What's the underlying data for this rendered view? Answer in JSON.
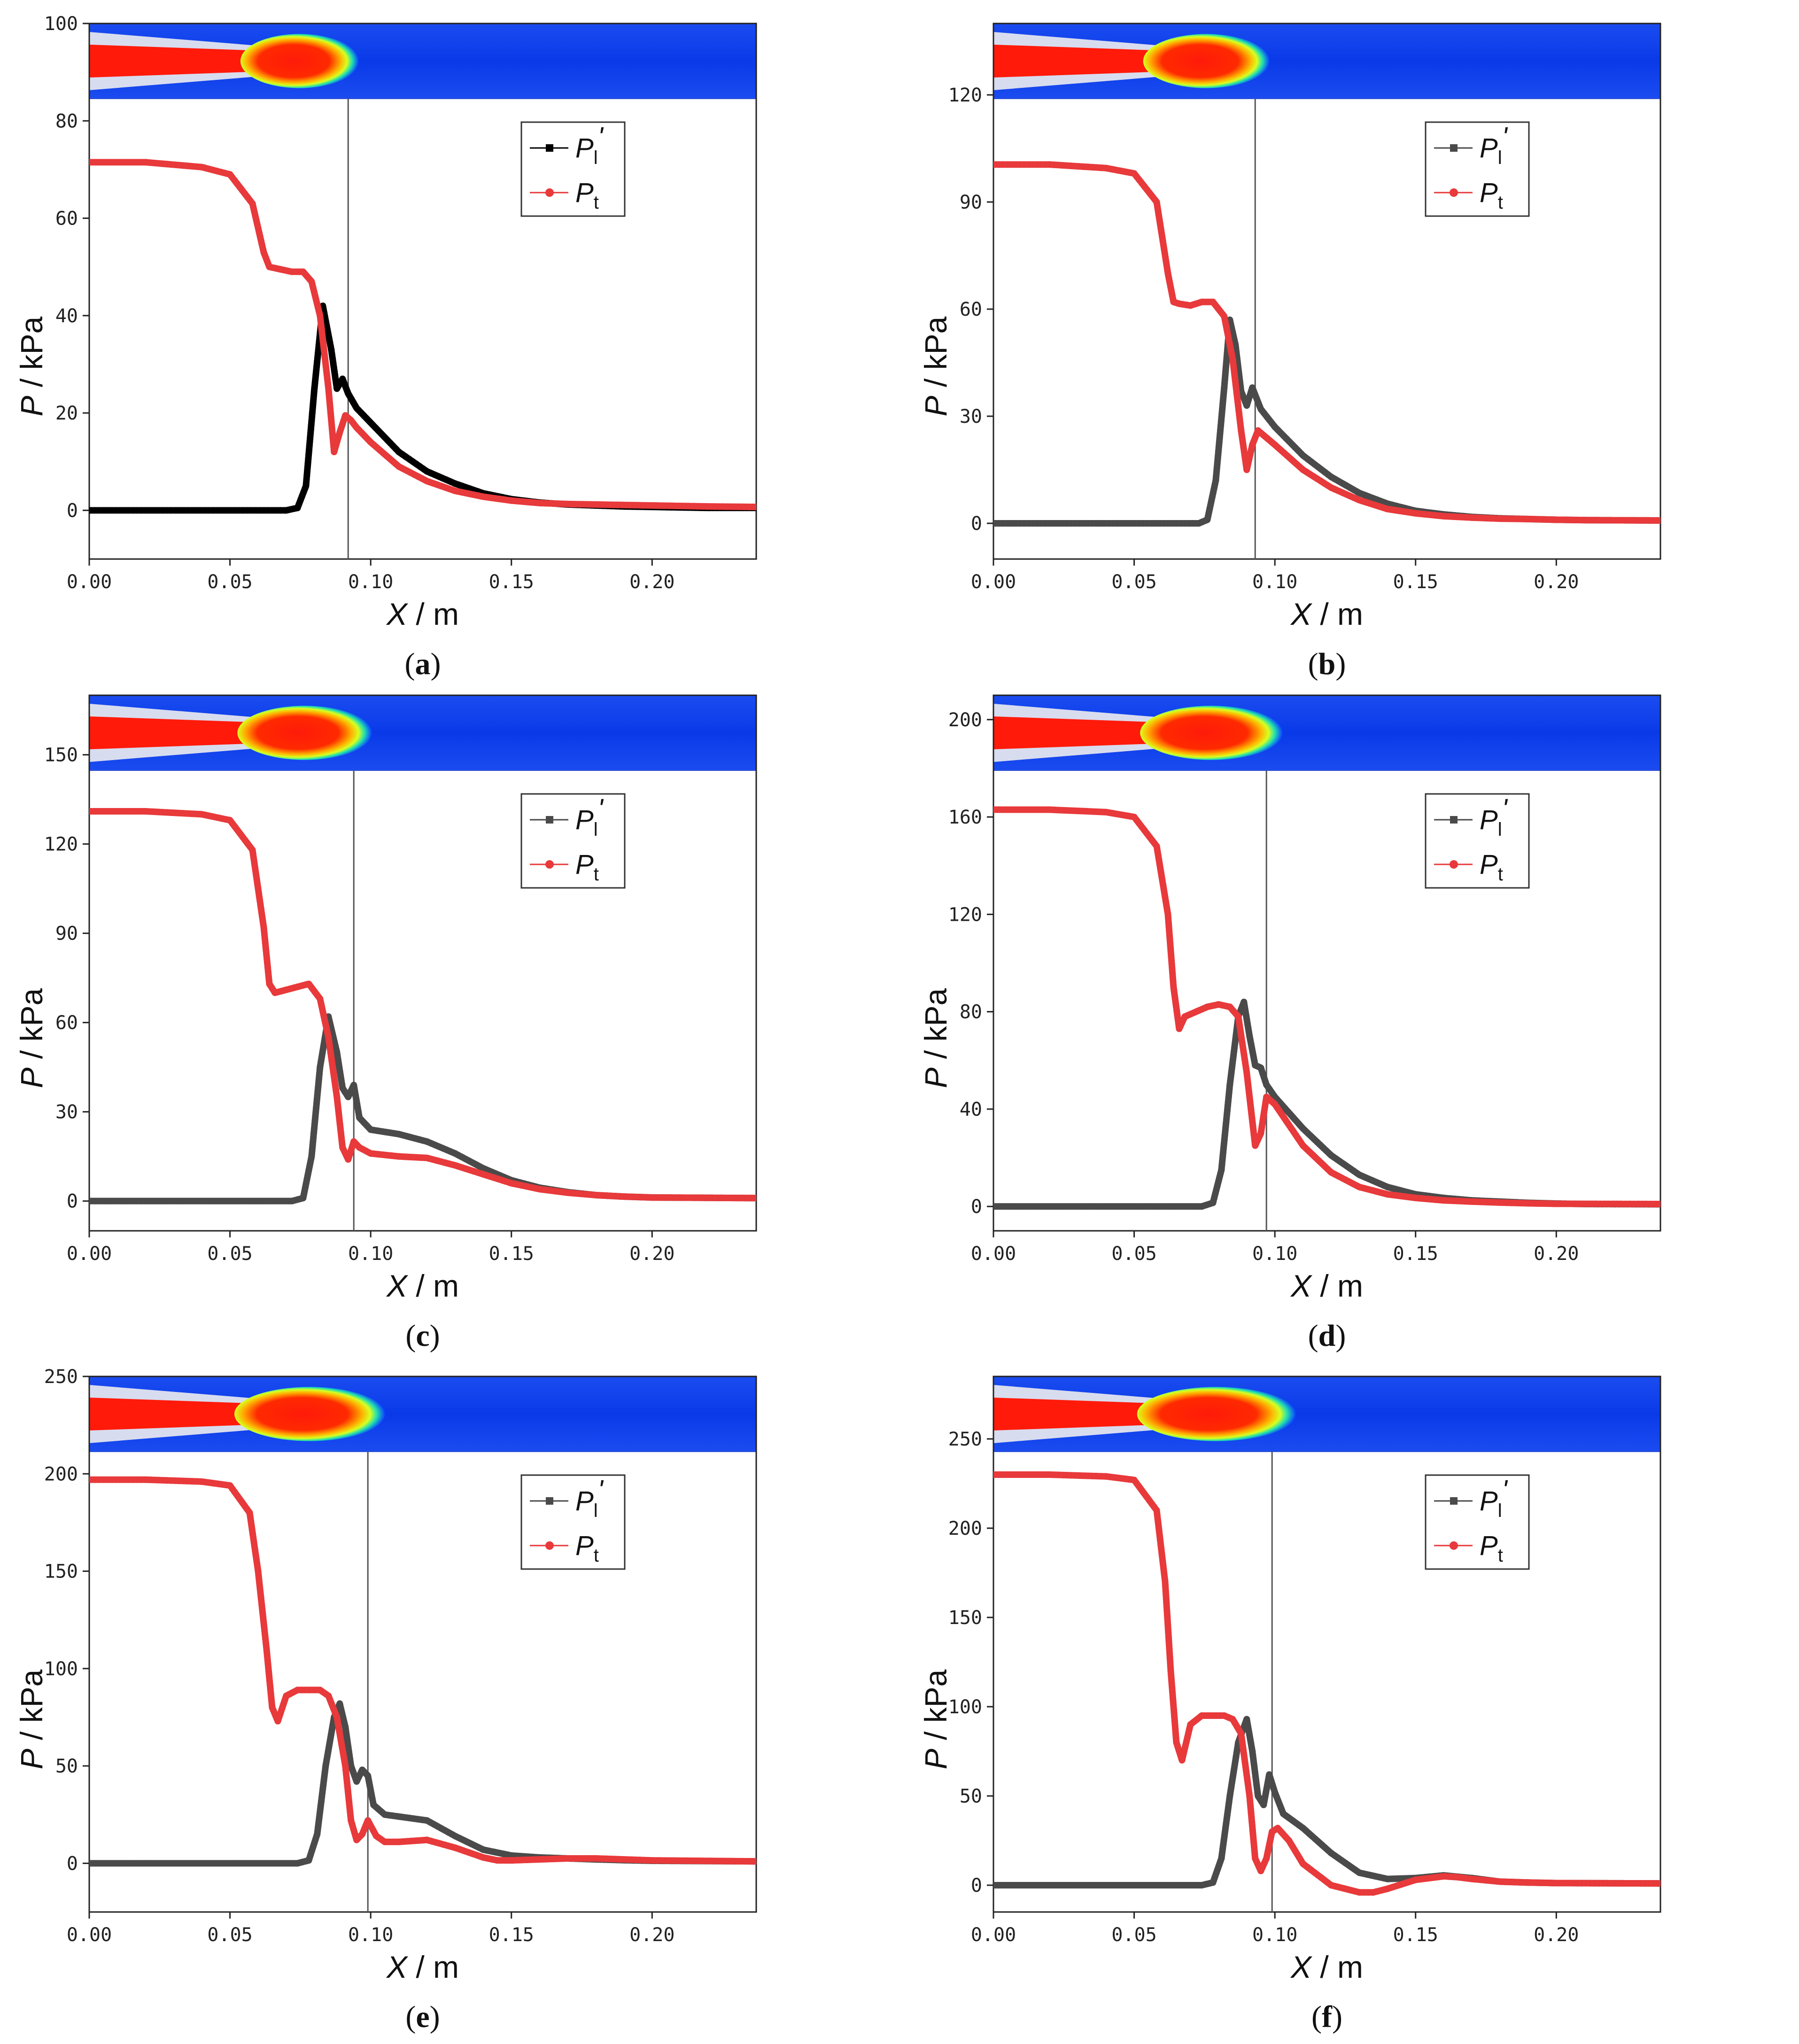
{
  "figure": {
    "xlabel_var": "X",
    "xlabel_unit": " / m",
    "ylabel_var": "P",
    "ylabel_unit": " / kPa",
    "legend": [
      {
        "sym": "P",
        "sub": "l",
        "prime": "'"
      },
      {
        "sym": "P",
        "sub": "t",
        "prime": ""
      }
    ],
    "colors": {
      "Pl": "#4a4a4a",
      "Pl_a": "#000000",
      "Pt": "#e8393b",
      "vline": "#555555"
    },
    "xticks": [
      0.0,
      0.05,
      0.1,
      0.15,
      0.2
    ],
    "xtick_labels": [
      "0.00",
      "0.05",
      "0.10",
      "0.15",
      "0.20"
    ]
  },
  "chart_data": [
    {
      "id": "a",
      "caption": "a",
      "type": "line",
      "xlim": [
        0,
        0.237
      ],
      "ylim": [
        -10,
        100
      ],
      "yticks": [
        0,
        20,
        40,
        60,
        80,
        100
      ],
      "vline_x": 0.092,
      "series": [
        {
          "name": "Pl'",
          "x": [
            0,
            0.07,
            0.074,
            0.077,
            0.08,
            0.083,
            0.086,
            0.088,
            0.09,
            0.092,
            0.095,
            0.1,
            0.11,
            0.12,
            0.13,
            0.14,
            0.15,
            0.16,
            0.17,
            0.18,
            0.19,
            0.2,
            0.21,
            0.22,
            0.237
          ],
          "y": [
            0,
            0,
            0.5,
            5,
            25,
            42,
            33,
            25,
            27,
            24,
            21,
            18,
            12,
            8,
            5.5,
            3.5,
            2.3,
            1.6,
            1.2,
            1.0,
            0.8,
            0.7,
            0.6,
            0.5,
            0.5
          ]
        },
        {
          "name": "Pt",
          "x": [
            0,
            0.02,
            0.04,
            0.05,
            0.058,
            0.062,
            0.064,
            0.068,
            0.072,
            0.076,
            0.079,
            0.082,
            0.085,
            0.087,
            0.089,
            0.091,
            0.093,
            0.095,
            0.1,
            0.11,
            0.12,
            0.13,
            0.14,
            0.15,
            0.16,
            0.17,
            0.18,
            0.19,
            0.2,
            0.21,
            0.22,
            0.237
          ],
          "y": [
            71.5,
            71.5,
            70.5,
            69,
            63,
            53,
            50,
            49.5,
            49,
            49,
            47,
            40,
            25,
            12,
            16,
            19.5,
            18.5,
            17,
            14,
            9,
            6,
            4,
            2.8,
            2,
            1.5,
            1.3,
            1.2,
            1.1,
            1,
            0.9,
            0.8,
            0.7
          ]
        }
      ]
    },
    {
      "id": "b",
      "caption": "b",
      "type": "line",
      "xlim": [
        0,
        0.237
      ],
      "ylim": [
        -10,
        140
      ],
      "yticks": [
        0,
        30,
        60,
        90,
        120
      ],
      "vline_x": 0.093,
      "series": [
        {
          "name": "Pl'",
          "x": [
            0,
            0.073,
            0.076,
            0.079,
            0.082,
            0.084,
            0.086,
            0.088,
            0.09,
            0.092,
            0.095,
            0.1,
            0.11,
            0.12,
            0.13,
            0.14,
            0.15,
            0.16,
            0.17,
            0.18,
            0.19,
            0.2,
            0.21,
            0.237
          ],
          "y": [
            0,
            0,
            1,
            12,
            38,
            57,
            50,
            37,
            33,
            38,
            32,
            27,
            19,
            13,
            8.5,
            5.5,
            3.5,
            2.5,
            1.8,
            1.4,
            1.2,
            1.0,
            0.9,
            0.8
          ]
        },
        {
          "name": "Pt",
          "x": [
            0,
            0.02,
            0.04,
            0.05,
            0.058,
            0.062,
            0.064,
            0.066,
            0.07,
            0.074,
            0.078,
            0.082,
            0.085,
            0.088,
            0.09,
            0.092,
            0.094,
            0.097,
            0.1,
            0.11,
            0.12,
            0.13,
            0.14,
            0.15,
            0.16,
            0.17,
            0.18,
            0.19,
            0.2,
            0.21,
            0.237
          ],
          "y": [
            100.5,
            100.5,
            99.5,
            98,
            90,
            70,
            62,
            61.5,
            61,
            62,
            62,
            58,
            46,
            26,
            15,
            22,
            26,
            24,
            22,
            15,
            10,
            6.5,
            4,
            2.8,
            2,
            1.6,
            1.3,
            1.2,
            1.0,
            0.9,
            0.8
          ]
        }
      ]
    },
    {
      "id": "c",
      "caption": "c",
      "type": "line",
      "xlim": [
        0,
        0.237
      ],
      "ylim": [
        -10,
        170
      ],
      "yticks": [
        0,
        30,
        60,
        90,
        120,
        150
      ],
      "vline_x": 0.094,
      "series": [
        {
          "name": "Pl'",
          "x": [
            0,
            0.072,
            0.076,
            0.079,
            0.082,
            0.085,
            0.088,
            0.09,
            0.092,
            0.094,
            0.096,
            0.1,
            0.11,
            0.12,
            0.13,
            0.14,
            0.15,
            0.16,
            0.17,
            0.18,
            0.19,
            0.2,
            0.237
          ],
          "y": [
            0,
            0,
            1,
            15,
            45,
            62,
            50,
            38,
            35,
            39,
            28,
            24,
            22.5,
            20,
            16,
            11,
            7,
            4.5,
            3,
            2,
            1.5,
            1.2,
            1.0
          ]
        },
        {
          "name": "Pt",
          "x": [
            0,
            0.02,
            0.04,
            0.05,
            0.058,
            0.062,
            0.064,
            0.066,
            0.07,
            0.074,
            0.078,
            0.082,
            0.085,
            0.088,
            0.09,
            0.092,
            0.094,
            0.096,
            0.1,
            0.11,
            0.12,
            0.13,
            0.14,
            0.15,
            0.16,
            0.17,
            0.18,
            0.19,
            0.2,
            0.237
          ],
          "y": [
            131,
            131,
            130,
            128,
            118,
            92,
            73,
            70,
            71,
            72,
            73,
            68,
            55,
            35,
            18,
            14,
            20,
            18,
            16,
            15,
            14.5,
            12,
            9,
            6,
            4,
            2.8,
            2,
            1.5,
            1.2,
            1.0
          ]
        }
      ]
    },
    {
      "id": "d",
      "caption": "d",
      "type": "line",
      "xlim": [
        0,
        0.237
      ],
      "ylim": [
        -10,
        210
      ],
      "yticks": [
        0,
        40,
        80,
        120,
        160,
        200
      ],
      "vline_x": 0.097,
      "series": [
        {
          "name": "Pl'",
          "x": [
            0,
            0.074,
            0.078,
            0.081,
            0.084,
            0.087,
            0.089,
            0.091,
            0.093,
            0.095,
            0.097,
            0.1,
            0.11,
            0.12,
            0.13,
            0.14,
            0.15,
            0.16,
            0.17,
            0.18,
            0.19,
            0.2,
            0.21,
            0.237
          ],
          "y": [
            0,
            0,
            1.5,
            15,
            50,
            78,
            84,
            70,
            58,
            57,
            50,
            45,
            32,
            21,
            13,
            8,
            5,
            3.5,
            2.5,
            2,
            1.5,
            1.2,
            1.0,
            0.9
          ]
        },
        {
          "name": "Pt",
          "x": [
            0,
            0.02,
            0.04,
            0.05,
            0.058,
            0.062,
            0.064,
            0.066,
            0.068,
            0.072,
            0.076,
            0.08,
            0.084,
            0.087,
            0.09,
            0.093,
            0.095,
            0.097,
            0.1,
            0.11,
            0.12,
            0.13,
            0.14,
            0.15,
            0.16,
            0.17,
            0.18,
            0.19,
            0.2,
            0.237
          ],
          "y": [
            163,
            163,
            162,
            160,
            148,
            120,
            90,
            73,
            78,
            80,
            82,
            83,
            82,
            78,
            55,
            25,
            30,
            45,
            42,
            25,
            14,
            8,
            5,
            3.5,
            2.5,
            2,
            1.6,
            1.3,
            1.1,
            1.0
          ]
        }
      ]
    },
    {
      "id": "e",
      "caption": "e",
      "type": "line",
      "xlim": [
        0,
        0.237
      ],
      "ylim": [
        -25,
        250
      ],
      "yticks": [
        0,
        50,
        100,
        150,
        200,
        250
      ],
      "vline_x": 0.099,
      "series": [
        {
          "name": "Pl'",
          "x": [
            0,
            0.074,
            0.078,
            0.081,
            0.084,
            0.087,
            0.089,
            0.091,
            0.093,
            0.095,
            0.097,
            0.099,
            0.101,
            0.105,
            0.11,
            0.12,
            0.13,
            0.14,
            0.15,
            0.16,
            0.17,
            0.18,
            0.19,
            0.2,
            0.237
          ],
          "y": [
            0,
            0,
            1.5,
            15,
            50,
            75,
            82,
            70,
            50,
            42,
            48,
            45,
            30,
            25,
            24,
            22,
            14,
            7,
            4,
            3,
            2.5,
            2,
            1.6,
            1.3,
            1.0
          ]
        },
        {
          "name": "Pt",
          "x": [
            0,
            0.02,
            0.04,
            0.05,
            0.057,
            0.06,
            0.063,
            0.065,
            0.067,
            0.07,
            0.074,
            0.078,
            0.082,
            0.085,
            0.088,
            0.091,
            0.093,
            0.095,
            0.097,
            0.099,
            0.102,
            0.105,
            0.11,
            0.12,
            0.13,
            0.14,
            0.145,
            0.15,
            0.16,
            0.17,
            0.18,
            0.19,
            0.2,
            0.237
          ],
          "y": [
            197,
            197,
            196,
            194,
            180,
            150,
            110,
            80,
            73,
            86,
            89,
            89,
            89,
            86,
            75,
            50,
            22,
            12,
            15,
            22,
            14,
            11,
            11,
            12,
            8,
            3,
            1.5,
            1.5,
            2,
            2.5,
            2.5,
            2,
            1.5,
            1.0
          ]
        }
      ]
    },
    {
      "id": "f",
      "caption": "f",
      "type": "line",
      "xlim": [
        0,
        0.237
      ],
      "ylim": [
        -15,
        285
      ],
      "yticks": [
        0,
        50,
        100,
        150,
        200,
        250
      ],
      "vline_x": 0.099,
      "series": [
        {
          "name": "Pl'",
          "x": [
            0,
            0.074,
            0.078,
            0.081,
            0.084,
            0.087,
            0.09,
            0.092,
            0.094,
            0.096,
            0.098,
            0.1,
            0.103,
            0.11,
            0.12,
            0.13,
            0.14,
            0.15,
            0.16,
            0.17,
            0.18,
            0.19,
            0.2,
            0.237
          ],
          "y": [
            0,
            0,
            1.5,
            15,
            50,
            80,
            93,
            75,
            50,
            45,
            62,
            52,
            40,
            32,
            18,
            7,
            3.5,
            4,
            5.5,
            4,
            2,
            1.5,
            1.2,
            1.0
          ]
        },
        {
          "name": "Pt",
          "x": [
            0,
            0.02,
            0.04,
            0.05,
            0.058,
            0.061,
            0.063,
            0.065,
            0.067,
            0.07,
            0.074,
            0.078,
            0.082,
            0.085,
            0.088,
            0.091,
            0.093,
            0.095,
            0.097,
            0.099,
            0.101,
            0.105,
            0.11,
            0.12,
            0.13,
            0.135,
            0.14,
            0.15,
            0.16,
            0.165,
            0.17,
            0.18,
            0.19,
            0.2,
            0.237
          ],
          "y": [
            230,
            230,
            229,
            227,
            210,
            170,
            120,
            80,
            70,
            90,
            95,
            95,
            95,
            93,
            85,
            50,
            15,
            8,
            15,
            30,
            32,
            25,
            12,
            0,
            -4,
            -4,
            -2,
            3,
            5,
            4.5,
            3.5,
            2,
            1.5,
            1.2,
            1.0
          ]
        }
      ]
    }
  ]
}
